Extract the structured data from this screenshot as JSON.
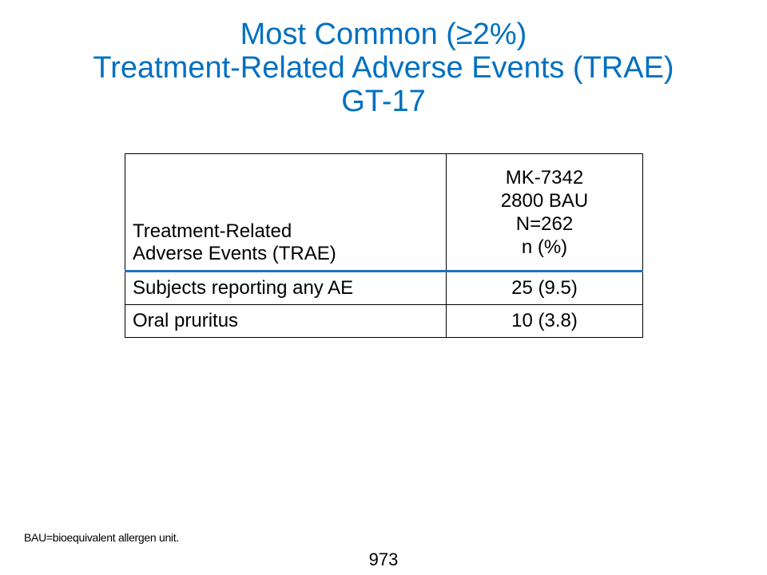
{
  "title": {
    "line1": "Most Common (≥2%)",
    "line2": "Treatment-Related Adverse Events (TRAE)",
    "line3": "GT-17",
    "color": "#0070c0"
  },
  "table": {
    "header_event": {
      "line1": "Treatment-Related",
      "line2": "Adverse Events (TRAE)"
    },
    "header_arm": {
      "line1": "MK-7342",
      "line2": "2800 BAU",
      "line3": "N=262",
      "line4": "n (%)"
    },
    "header_rule_color": "#1f6fc0",
    "rows": [
      {
        "event": "Subjects reporting any AE",
        "value": "25 (9.5)"
      },
      {
        "event": "Oral pruritus",
        "value": "10 (3.8)"
      }
    ]
  },
  "footnote": "BAU=bioequivalent allergen unit.",
  "page_number": "973"
}
